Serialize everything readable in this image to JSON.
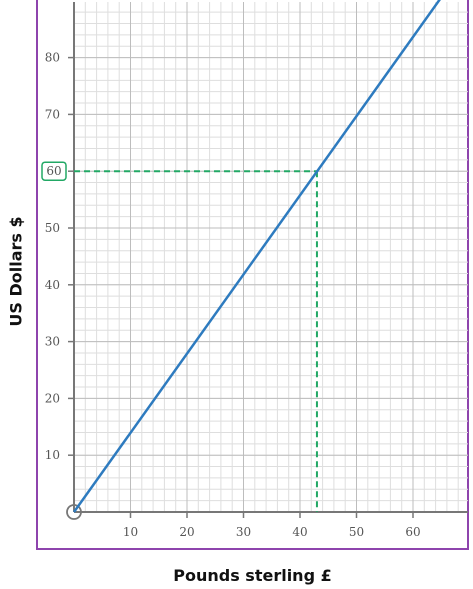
{
  "chart_data": {
    "type": "line",
    "xlabel": "Pounds sterling £",
    "ylabel": "US Dollars $",
    "xlim": [
      0,
      70
    ],
    "ylim": [
      0,
      90
    ],
    "x_ticks": [
      10,
      20,
      30,
      40,
      50,
      60
    ],
    "y_ticks": [
      10,
      20,
      30,
      40,
      50,
      60,
      70,
      80
    ],
    "minor_step": 2,
    "grid": true,
    "series": [
      {
        "x": [
          0,
          65
        ],
        "y": [
          0,
          90.6
        ],
        "color": "#2e7bbf"
      }
    ],
    "reading": {
      "x": 43,
      "y": 60,
      "label": "60",
      "color": "#22a865"
    },
    "frame_color": "#8e44ad",
    "origin_marker": "circle"
  }
}
